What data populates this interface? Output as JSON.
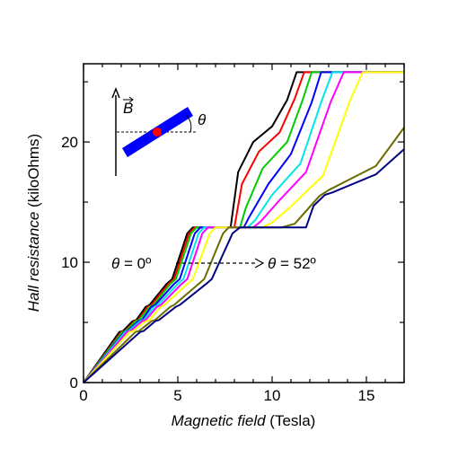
{
  "chart_data": {
    "type": "line",
    "xlabel_italic": "Magnetic field",
    "xlabel_unit": "(Tesla)",
    "ylabel_italic": "Hall resistance",
    "ylabel_unit": "(kiloOhms)",
    "xlim": [
      0,
      17
    ],
    "ylim": [
      0,
      26.5
    ],
    "xticks": [
      0,
      5,
      10,
      15
    ],
    "yticks": [
      0,
      10,
      20
    ],
    "grid": false,
    "annotation": {
      "left_theta": "θ",
      "left_value": " = 0º",
      "right_theta": "θ",
      "right_value": " = 52º"
    },
    "inset": {
      "field_label": "B",
      "angle_label": "θ"
    },
    "plateaus": [
      25.8,
      12.9,
      8.6,
      6.45,
      5.16,
      4.3
    ],
    "series": [
      {
        "color": "#000000",
        "x": [
          0,
          1.9,
          2.1,
          2.6,
          2.8,
          3.3,
          3.5,
          4.4,
          4.7,
          5.5,
          5.8,
          7.8,
          8.2,
          9.0,
          10.0,
          10.8,
          11.3,
          17
        ],
        "y": [
          0,
          4.2,
          4.3,
          5.1,
          5.2,
          6.3,
          6.45,
          8.2,
          8.6,
          12.4,
          12.9,
          12.9,
          17.5,
          20.0,
          21.3,
          23.5,
          25.8,
          25.8
        ]
      },
      {
        "color": "#ff0000",
        "x": [
          0,
          2.0,
          2.2,
          2.7,
          2.9,
          3.4,
          3.6,
          4.5,
          4.8,
          5.6,
          5.9,
          8.0,
          8.4,
          9.3,
          10.4,
          11.2,
          11.7,
          17
        ],
        "y": [
          0,
          4.2,
          4.3,
          5.1,
          5.2,
          6.3,
          6.45,
          8.2,
          8.6,
          12.4,
          12.9,
          12.9,
          16.5,
          19.2,
          20.8,
          23.6,
          25.8,
          25.8
        ]
      },
      {
        "color": "#00cc00",
        "x": [
          0,
          2.05,
          2.25,
          2.75,
          2.95,
          3.5,
          3.7,
          4.6,
          4.9,
          5.7,
          6.0,
          8.3,
          8.6,
          9.5,
          10.8,
          11.6,
          12.1,
          17
        ],
        "y": [
          0,
          4.2,
          4.3,
          5.1,
          5.2,
          6.3,
          6.45,
          8.2,
          8.6,
          12.4,
          12.9,
          12.9,
          14.5,
          17.8,
          20.0,
          23.4,
          25.8,
          25.8
        ]
      },
      {
        "color": "#0000ff",
        "x": [
          0,
          2.15,
          2.35,
          2.9,
          3.1,
          3.6,
          3.8,
          4.8,
          5.1,
          5.9,
          6.2,
          8.5,
          8.8,
          9.8,
          11.0,
          12.1,
          12.6,
          17
        ],
        "y": [
          0,
          4.2,
          4.3,
          5.1,
          5.2,
          6.3,
          6.45,
          8.2,
          8.6,
          12.4,
          12.9,
          12.9,
          13.8,
          16.5,
          19.0,
          23.3,
          25.8,
          25.8
        ]
      },
      {
        "color": "#00e5ee",
        "x": [
          0,
          2.2,
          2.4,
          3.0,
          3.2,
          3.75,
          3.95,
          5.0,
          5.3,
          6.1,
          6.4,
          8.7,
          9.1,
          10.0,
          11.5,
          12.6,
          13.2,
          17
        ],
        "y": [
          0,
          4.2,
          4.3,
          5.1,
          5.2,
          6.3,
          6.45,
          8.2,
          8.6,
          12.4,
          12.9,
          12.9,
          13.5,
          15.6,
          18.2,
          23.3,
          25.8,
          25.8
        ]
      },
      {
        "color": "#ff00ff",
        "x": [
          0,
          2.3,
          2.5,
          3.1,
          3.3,
          3.9,
          4.1,
          5.2,
          5.5,
          6.3,
          6.6,
          9.0,
          9.4,
          10.3,
          11.8,
          13.1,
          13.8,
          17
        ],
        "y": [
          0,
          4.2,
          4.3,
          5.1,
          5.2,
          6.3,
          6.45,
          8.2,
          8.6,
          12.4,
          12.9,
          12.9,
          13.4,
          15.0,
          17.5,
          23.3,
          25.8,
          25.8
        ]
      },
      {
        "color": "#ffff00",
        "x": [
          0,
          2.45,
          2.65,
          3.3,
          3.5,
          4.1,
          4.3,
          5.5,
          5.8,
          6.7,
          7.0,
          9.5,
          10.0,
          10.9,
          12.7,
          14.1,
          14.8,
          17
        ],
        "y": [
          0,
          4.2,
          4.3,
          5.1,
          5.2,
          6.3,
          6.45,
          8.2,
          8.6,
          12.4,
          12.9,
          12.9,
          13.3,
          14.5,
          17.2,
          23.3,
          25.8,
          25.8
        ]
      },
      {
        "color": "#6b6b00",
        "x": [
          0,
          2.75,
          2.95,
          3.6,
          3.8,
          4.6,
          4.8,
          6.1,
          6.4,
          7.4,
          7.7,
          10.5,
          11.2,
          12.5,
          13.0,
          15.5,
          17
        ],
        "y": [
          0,
          4.2,
          4.3,
          5.1,
          5.2,
          6.3,
          6.45,
          8.2,
          8.6,
          12.4,
          12.9,
          12.9,
          13.2,
          15.5,
          16.0,
          18.0,
          21.2
        ]
      },
      {
        "color": "#000080",
        "x": [
          0,
          3.0,
          3.2,
          3.8,
          4.0,
          4.9,
          5.1,
          6.5,
          6.8,
          7.9,
          8.3,
          11.8,
          12.2,
          12.8,
          13.2,
          15.5,
          17
        ],
        "y": [
          0,
          4.2,
          4.3,
          5.1,
          5.2,
          6.3,
          6.45,
          8.2,
          8.6,
          12.4,
          12.9,
          12.9,
          14.7,
          15.6,
          15.8,
          17.3,
          19.4
        ]
      }
    ]
  }
}
